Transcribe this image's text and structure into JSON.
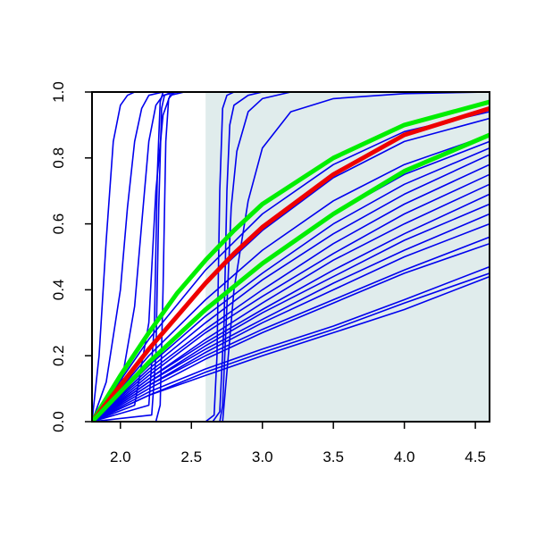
{
  "chart_data": {
    "type": "line",
    "title": "",
    "xlabel": "",
    "ylabel": "",
    "xlim": [
      1.8,
      4.6
    ],
    "ylim": [
      0.0,
      1.0
    ],
    "grid": false,
    "x_ticks": [
      "2.0",
      "2.5",
      "3.0",
      "3.5",
      "4.0",
      "4.5"
    ],
    "y_ticks": [
      "0.0",
      "0.2",
      "0.4",
      "0.6",
      "0.8",
      "1.0"
    ],
    "shaded_region": {
      "x_range": [
        2.6,
        4.6
      ],
      "color": "#e0ecec"
    },
    "colors": {
      "background": "#ffffff",
      "frame": "#000000",
      "curve_blue": "#0000ee",
      "curve_red": "#ee0000",
      "curve_green": "#00ee00"
    },
    "series": [
      {
        "color": "blue",
        "values": {
          "x": [
            1.8,
            1.85,
            1.9,
            1.95,
            2.0,
            2.05,
            2.1,
            2.15,
            2.2
          ],
          "y": [
            0.0,
            0.2,
            0.55,
            0.85,
            0.96,
            0.99,
            1.0,
            1.0,
            1.0
          ]
        }
      },
      {
        "color": "blue",
        "values": {
          "x": [
            1.8,
            1.9,
            2.0,
            2.05,
            2.1,
            2.15,
            2.2,
            2.3
          ],
          "y": [
            0.0,
            0.12,
            0.4,
            0.65,
            0.85,
            0.95,
            0.99,
            1.0
          ]
        }
      },
      {
        "color": "blue",
        "values": {
          "x": [
            1.8,
            2.0,
            2.1,
            2.15,
            2.2,
            2.25,
            2.3,
            2.4
          ],
          "y": [
            0.0,
            0.1,
            0.35,
            0.6,
            0.85,
            0.96,
            0.99,
            1.0
          ]
        }
      },
      {
        "color": "blue",
        "values": {
          "x": [
            1.8,
            2.1,
            2.2,
            2.25,
            2.3,
            2.35,
            2.45
          ],
          "y": [
            0.0,
            0.05,
            0.3,
            0.7,
            0.93,
            0.99,
            1.0
          ]
        }
      },
      {
        "color": "blue",
        "values": {
          "x": [
            1.8,
            2.2,
            2.24,
            2.26,
            2.28,
            2.3,
            2.35
          ],
          "y": [
            0.0,
            0.05,
            0.3,
            0.75,
            0.97,
            1.0,
            1.0
          ]
        }
      },
      {
        "color": "blue",
        "values": {
          "x": [
            1.8,
            2.22,
            2.25,
            2.27,
            2.29,
            2.31,
            2.36
          ],
          "y": [
            0.0,
            0.02,
            0.2,
            0.65,
            0.95,
            0.99,
            1.0
          ]
        }
      },
      {
        "color": "blue",
        "values": {
          "x": [
            2.25,
            2.28,
            2.3,
            2.32,
            2.34,
            2.38
          ],
          "y": [
            0.0,
            0.05,
            0.4,
            0.85,
            0.98,
            1.0
          ]
        }
      },
      {
        "color": "blue",
        "values": {
          "x": [
            2.6,
            2.66,
            2.68,
            2.7,
            2.72,
            2.75,
            2.8
          ],
          "y": [
            0.0,
            0.02,
            0.2,
            0.7,
            0.95,
            0.99,
            1.0
          ]
        }
      },
      {
        "color": "blue",
        "values": {
          "x": [
            2.65,
            2.7,
            2.73,
            2.75,
            2.77,
            2.8,
            2.9,
            3.0
          ],
          "y": [
            0.0,
            0.03,
            0.3,
            0.7,
            0.9,
            0.96,
            0.99,
            1.0
          ]
        }
      },
      {
        "color": "blue",
        "values": {
          "x": [
            2.7,
            2.72,
            2.75,
            2.78,
            2.82,
            2.9,
            3.0,
            3.2
          ],
          "y": [
            0.0,
            0.05,
            0.35,
            0.65,
            0.82,
            0.94,
            0.98,
            1.0
          ]
        }
      },
      {
        "color": "blue",
        "values": {
          "x": [
            2.72,
            2.75,
            2.8,
            2.9,
            3.0,
            3.2,
            3.5,
            4.0,
            4.6
          ],
          "y": [
            0.0,
            0.15,
            0.4,
            0.67,
            0.83,
            0.94,
            0.98,
            0.995,
            1.0
          ]
        }
      },
      {
        "color": "blue",
        "values": {
          "x": [
            1.8,
            2.2,
            2.6,
            3.0,
            3.5,
            4.0,
            4.6
          ],
          "y": [
            0.0,
            0.25,
            0.46,
            0.63,
            0.78,
            0.88,
            0.94
          ]
        }
      },
      {
        "color": "blue",
        "values": {
          "x": [
            1.8,
            2.2,
            2.6,
            3.0,
            3.5,
            4.0,
            4.6
          ],
          "y": [
            0.0,
            0.22,
            0.42,
            0.58,
            0.74,
            0.85,
            0.92
          ]
        }
      },
      {
        "color": "blue",
        "values": {
          "x": [
            1.8,
            2.2,
            2.6,
            3.0,
            3.5,
            4.0,
            4.6
          ],
          "y": [
            0.0,
            0.2,
            0.37,
            0.52,
            0.67,
            0.78,
            0.87
          ]
        }
      },
      {
        "color": "blue",
        "values": {
          "x": [
            1.8,
            2.2,
            2.6,
            3.0,
            3.5,
            4.0,
            4.6
          ],
          "y": [
            0.0,
            0.18,
            0.34,
            0.48,
            0.63,
            0.75,
            0.85
          ]
        }
      },
      {
        "color": "blue",
        "values": {
          "x": [
            1.8,
            2.2,
            2.6,
            3.0,
            3.5,
            4.0,
            4.6
          ],
          "y": [
            0.0,
            0.17,
            0.32,
            0.45,
            0.6,
            0.72,
            0.83
          ]
        }
      },
      {
        "color": "blue",
        "values": {
          "x": [
            1.8,
            2.2,
            2.6,
            3.0,
            3.5,
            4.0,
            4.6
          ],
          "y": [
            0.0,
            0.16,
            0.3,
            0.43,
            0.57,
            0.69,
            0.81
          ]
        }
      },
      {
        "color": "blue",
        "values": {
          "x": [
            1.8,
            2.2,
            2.6,
            3.0,
            3.5,
            4.0,
            4.6
          ],
          "y": [
            0.0,
            0.15,
            0.28,
            0.4,
            0.54,
            0.66,
            0.78
          ]
        }
      },
      {
        "color": "blue",
        "values": {
          "x": [
            1.8,
            2.2,
            2.6,
            3.0,
            3.5,
            4.0,
            4.6
          ],
          "y": [
            0.0,
            0.14,
            0.27,
            0.38,
            0.51,
            0.63,
            0.75
          ]
        }
      },
      {
        "color": "blue",
        "values": {
          "x": [
            1.8,
            2.2,
            2.6,
            3.0,
            3.5,
            4.0,
            4.6
          ],
          "y": [
            0.0,
            0.13,
            0.25,
            0.36,
            0.49,
            0.6,
            0.72
          ]
        }
      },
      {
        "color": "blue",
        "values": {
          "x": [
            1.8,
            2.2,
            2.6,
            3.0,
            3.5,
            4.0,
            4.6
          ],
          "y": [
            0.0,
            0.13,
            0.24,
            0.34,
            0.46,
            0.57,
            0.69
          ]
        }
      },
      {
        "color": "blue",
        "values": {
          "x": [
            1.8,
            2.2,
            2.6,
            3.0,
            3.5,
            4.0,
            4.6
          ],
          "y": [
            0.0,
            0.12,
            0.23,
            0.33,
            0.44,
            0.55,
            0.66
          ]
        }
      },
      {
        "color": "blue",
        "values": {
          "x": [
            1.8,
            2.2,
            2.6,
            3.0,
            3.5,
            4.0,
            4.6
          ],
          "y": [
            0.0,
            0.12,
            0.22,
            0.31,
            0.42,
            0.52,
            0.63
          ]
        }
      },
      {
        "color": "blue",
        "values": {
          "x": [
            1.8,
            2.2,
            2.6,
            3.0,
            3.5,
            4.0,
            4.6
          ],
          "y": [
            0.0,
            0.11,
            0.21,
            0.3,
            0.4,
            0.5,
            0.6
          ]
        }
      },
      {
        "color": "blue",
        "values": {
          "x": [
            1.8,
            2.2,
            2.6,
            3.0,
            3.5,
            4.0,
            4.6
          ],
          "y": [
            0.0,
            0.11,
            0.2,
            0.28,
            0.37,
            0.46,
            0.56
          ]
        }
      },
      {
        "color": "blue",
        "values": {
          "x": [
            1.8,
            2.2,
            2.6,
            3.0,
            3.5,
            4.0,
            4.6
          ],
          "y": [
            0.0,
            0.1,
            0.19,
            0.27,
            0.36,
            0.45,
            0.54
          ]
        }
      },
      {
        "color": "blue",
        "values": {
          "x": [
            1.8,
            2.2,
            2.6,
            3.0,
            3.5,
            4.0,
            4.6
          ],
          "y": [
            0.0,
            0.09,
            0.16,
            0.22,
            0.29,
            0.37,
            0.47
          ]
        }
      },
      {
        "color": "blue",
        "values": {
          "x": [
            1.8,
            2.2,
            2.6,
            3.0,
            3.5,
            4.0,
            4.6
          ],
          "y": [
            0.0,
            0.08,
            0.15,
            0.21,
            0.28,
            0.36,
            0.45
          ]
        }
      },
      {
        "color": "blue",
        "values": {
          "x": [
            1.8,
            2.2,
            2.6,
            3.0,
            3.5,
            4.0,
            4.6
          ],
          "y": [
            0.0,
            0.08,
            0.14,
            0.2,
            0.27,
            0.34,
            0.44
          ]
        }
      },
      {
        "color": "green",
        "values": {
          "x": [
            1.8,
            2.0,
            2.2,
            2.4,
            2.6,
            2.8,
            3.0,
            3.5,
            4.0,
            4.6
          ],
          "y": [
            0.0,
            0.14,
            0.27,
            0.39,
            0.49,
            0.58,
            0.66,
            0.8,
            0.9,
            0.97
          ]
        }
      },
      {
        "color": "red",
        "values": {
          "x": [
            1.8,
            2.0,
            2.2,
            2.4,
            2.6,
            2.8,
            3.0,
            3.5,
            4.0,
            4.6
          ],
          "y": [
            0.0,
            0.11,
            0.22,
            0.32,
            0.42,
            0.51,
            0.59,
            0.75,
            0.87,
            0.95
          ]
        }
      },
      {
        "color": "green",
        "values": {
          "x": [
            1.8,
            2.0,
            2.2,
            2.4,
            2.6,
            2.8,
            3.0,
            3.5,
            4.0,
            4.6
          ],
          "y": [
            0.0,
            0.09,
            0.18,
            0.26,
            0.34,
            0.41,
            0.48,
            0.63,
            0.76,
            0.87
          ]
        }
      }
    ]
  }
}
